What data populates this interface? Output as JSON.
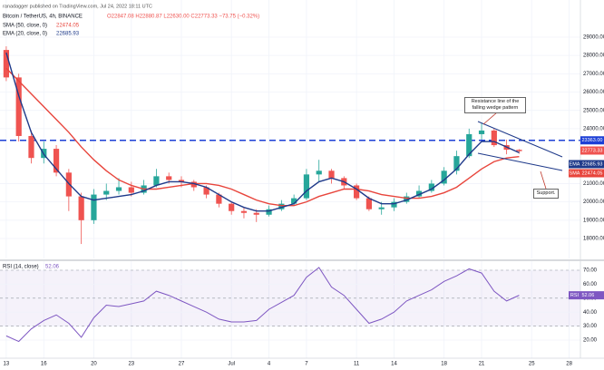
{
  "chart_data": [
    {
      "type": "candlestick",
      "attribution": "ranadagger published on TradingView.com, Jul 24, 2022 18:11 UTC",
      "title": "Bitcoin / TetherUS, 4h, BINANCE",
      "ohlc": "O22847.08 H22880.87 L22630.00 C22773.33 −73.75 (−0.32%)",
      "x": [
        0,
        1,
        2,
        3,
        4,
        5,
        6,
        7,
        8,
        9,
        10,
        11,
        12,
        13,
        14,
        15,
        16,
        17,
        18,
        19,
        20,
        21,
        22,
        23,
        24,
        25,
        26,
        27,
        28,
        29,
        30,
        31,
        32,
        33,
        34,
        35,
        36,
        37,
        38,
        39,
        40,
        41
      ],
      "open": [
        28300,
        26800,
        23600,
        22400,
        22900,
        21600,
        20300,
        19000,
        20400,
        20600,
        20800,
        20500,
        20900,
        21400,
        21200,
        21100,
        20800,
        20400,
        19900,
        19500,
        19400,
        19300,
        19600,
        19900,
        20200,
        21500,
        21700,
        21300,
        20900,
        20200,
        19600,
        19700,
        20000,
        20300,
        20600,
        21000,
        21700,
        22500,
        23700,
        23900,
        23100,
        22847.08
      ],
      "high": [
        28500,
        27000,
        23900,
        23300,
        23100,
        21800,
        20500,
        20700,
        21000,
        21300,
        21100,
        21200,
        21800,
        21600,
        21400,
        21200,
        20900,
        20500,
        20000,
        19700,
        19600,
        19800,
        20100,
        20400,
        21800,
        22300,
        21800,
        21400,
        21000,
        20300,
        20000,
        20200,
        20500,
        20900,
        21200,
        21900,
        22800,
        24000,
        24300,
        24000,
        23400,
        22880.87
      ],
      "low": [
        26600,
        23300,
        22100,
        22100,
        21400,
        19500,
        17700,
        18800,
        20100,
        20400,
        20300,
        20400,
        20800,
        21000,
        20800,
        20600,
        20200,
        19700,
        19300,
        19100,
        18900,
        19200,
        19500,
        19800,
        20100,
        21100,
        21000,
        20700,
        20100,
        19500,
        19300,
        19500,
        19900,
        20200,
        20500,
        20900,
        21500,
        22400,
        23400,
        23000,
        22600,
        22630
      ],
      "close": [
        26800,
        23600,
        22400,
        22900,
        21600,
        20300,
        19000,
        20400,
        20600,
        20800,
        20500,
        20900,
        21400,
        21200,
        21100,
        20800,
        20400,
        19900,
        19500,
        19400,
        19300,
        19600,
        19900,
        20200,
        21500,
        21700,
        21300,
        20900,
        20200,
        19600,
        19700,
        20000,
        20300,
        20600,
        21000,
        21700,
        22500,
        23700,
        23900,
        23100,
        22850,
        22773.33
      ],
      "colors": {
        "up": "#26a69a",
        "down": "#ef5350"
      },
      "series": [
        {
          "name": "SMA (50, close, 0)",
          "short": "SMA",
          "color": "#e8453c",
          "values": [
            27300,
            26600,
            25900,
            25200,
            24500,
            23800,
            23000,
            22300,
            21700,
            21200,
            20900,
            20700,
            20700,
            20800,
            20900,
            21000,
            21000,
            20900,
            20700,
            20400,
            20100,
            19900,
            19800,
            19800,
            20000,
            20300,
            20500,
            20700,
            20700,
            20600,
            20400,
            20300,
            20200,
            20200,
            20300,
            20500,
            20800,
            21300,
            21800,
            22200,
            22400,
            22474.05
          ]
        },
        {
          "name": "EMA (20, close, 0)",
          "short": "EMA",
          "color": "#1f3a8a",
          "values": [
            28150,
            25800,
            23800,
            22600,
            21800,
            21000,
            20300,
            20100,
            20200,
            20300,
            20400,
            20600,
            20900,
            21100,
            21100,
            21000,
            20800,
            20400,
            20000,
            19700,
            19500,
            19500,
            19700,
            19900,
            20600,
            21100,
            21300,
            21100,
            20700,
            20200,
            19900,
            19900,
            20100,
            20400,
            20700,
            21200,
            21800,
            22600,
            23300,
            23300,
            23000,
            22685.93
          ]
        }
      ],
      "hlines": [
        {
          "value": 23363,
          "label": "23363.00",
          "color": "#1c3fd6"
        }
      ],
      "annotations": [
        "Resistance line of the falling wedge pattern",
        "Support."
      ],
      "xlim": [
        -0.5,
        45.9
      ],
      "ylim": [
        16910,
        31030
      ],
      "yticks": [
        {
          "value": 18000,
          "label": "18000.00"
        },
        {
          "value": 19000,
          "label": "19000.00"
        },
        {
          "value": 20000,
          "label": "20000.00"
        },
        {
          "value": 21000,
          "label": "21000.00"
        },
        {
          "value": 24000,
          "label": "24000.00"
        },
        {
          "value": 25000,
          "label": "25000.00"
        },
        {
          "value": 26000,
          "label": "26000.00"
        },
        {
          "value": 27000,
          "label": "27000.00"
        },
        {
          "value": 28000,
          "label": "28000.00"
        },
        {
          "value": 29000,
          "label": "29000.00"
        }
      ],
      "grid": true
    },
    {
      "type": "line",
      "x": [
        0,
        1,
        2,
        3,
        4,
        5,
        6,
        7,
        8,
        9,
        10,
        11,
        12,
        13,
        14,
        15,
        16,
        17,
        18,
        19,
        20,
        21,
        22,
        23,
        24,
        25,
        26,
        27,
        28,
        29,
        30,
        31,
        32,
        33,
        34,
        35,
        36,
        37,
        38,
        39,
        40,
        41
      ],
      "series": [
        {
          "name": "RSI (14, close)",
          "short": "RSI",
          "color": "#7e57c2",
          "values": [
            23,
            19,
            28,
            34,
            38,
            32,
            22,
            36,
            45,
            44,
            46,
            48,
            55,
            52,
            48,
            44,
            40,
            35,
            33,
            33,
            34,
            42,
            47,
            52,
            65,
            72,
            58,
            52,
            42,
            32,
            35,
            40,
            48,
            52,
            56,
            62,
            66,
            71,
            68,
            55,
            48,
            52.06
          ]
        }
      ],
      "xlim": [
        -0.5,
        45.9
      ],
      "ylim": [
        7,
        76.5
      ],
      "yticks": [
        {
          "value": 70,
          "label": "70.00"
        },
        {
          "value": 60,
          "label": "60.00"
        },
        {
          "value": 50,
          "label": "50.00"
        },
        {
          "value": 40,
          "label": "40.00"
        },
        {
          "value": 30,
          "label": "30.00"
        },
        {
          "value": 20,
          "label": "20.00"
        }
      ],
      "xticks": [
        {
          "value": 0,
          "label": "13"
        },
        {
          "value": 3,
          "label": "16"
        },
        {
          "value": 7,
          "label": "20"
        },
        {
          "value": 10,
          "label": "23"
        },
        {
          "value": 14,
          "label": "27"
        },
        {
          "value": 18,
          "label": "Jul"
        },
        {
          "value": 21,
          "label": "4"
        },
        {
          "value": 24,
          "label": "7"
        },
        {
          "value": 28,
          "label": "11"
        },
        {
          "value": 31,
          "label": "14"
        },
        {
          "value": 35,
          "label": "18"
        },
        {
          "value": 38,
          "label": "21"
        },
        {
          "value": 42,
          "label": "25"
        },
        {
          "value": 45,
          "label": "28"
        }
      ],
      "grid": true
    }
  ]
}
